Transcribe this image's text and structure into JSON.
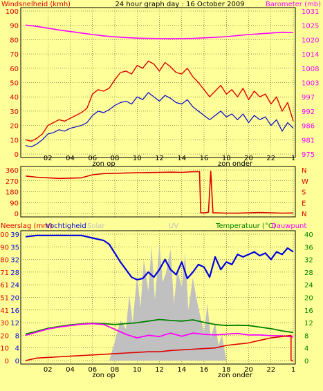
{
  "colors": {
    "background": "#ffff99",
    "wind": "#dd0000",
    "gust": "#0000cc",
    "baro": "#ff00ff",
    "rain": "#dd0000",
    "humidity": "#0000dd",
    "temperature": "#008000",
    "dewpoint": "#ff00ff",
    "solar": "#c0c0c0",
    "frame": "#000000"
  },
  "chart_data": [
    {
      "type": "line",
      "title": "24 hour graph day : 16 October 2009",
      "left_label": "Windsnelheid (kmh)",
      "right_label": "Barometer (mb)",
      "ylim": [
        0,
        100
      ],
      "y_ticks": [
        "100",
        "90",
        "80",
        "70",
        "60",
        "50",
        "40",
        "30",
        "20",
        "10",
        "0"
      ],
      "y2_lim": [
        975,
        1031
      ],
      "y2_ticks": [
        "1031",
        "1025",
        "1020",
        "1014",
        "1008",
        "1003",
        "997",
        "992",
        "986",
        "981",
        "975"
      ],
      "x_ticks": [
        "02",
        "04",
        "06",
        "08",
        "10",
        "12",
        "14",
        "16",
        "18",
        "20",
        "22",
        "1"
      ],
      "sunrise_label": "zon op",
      "sunset_label": "zon onder",
      "series": [
        {
          "key": "wind",
          "x": [
            0,
            0.5,
            1,
            1.5,
            2,
            2.5,
            3,
            3.5,
            4,
            4.5,
            5,
            5.5,
            6,
            6.5,
            7,
            7.5,
            8,
            8.5,
            9,
            9.5,
            10,
            10.5,
            11,
            11.5,
            12,
            12.5,
            13,
            13.5,
            14,
            14.5,
            15,
            15.5,
            16,
            16.5,
            17,
            17.5,
            18,
            18.5,
            19,
            19.5,
            20,
            20.5,
            21,
            21.5,
            22,
            22.5,
            23,
            23.5,
            24
          ],
          "values": [
            10,
            9,
            11,
            14,
            20,
            22,
            24,
            23,
            25,
            27,
            29,
            32,
            42,
            45,
            44,
            46,
            52,
            57,
            58,
            56,
            62,
            60,
            65,
            63,
            58,
            64,
            61,
            57,
            56,
            60,
            54,
            50,
            45,
            40,
            44,
            48,
            42,
            45,
            40,
            46,
            38,
            44,
            40,
            42,
            35,
            40,
            30,
            36,
            23
          ]
        },
        {
          "key": "gust",
          "x": [
            0,
            0.5,
            1,
            1.5,
            2,
            2.5,
            3,
            3.5,
            4,
            4.5,
            5,
            5.5,
            6,
            6.5,
            7,
            7.5,
            8,
            8.5,
            9,
            9.5,
            10,
            10.5,
            11,
            11.5,
            12,
            12.5,
            13,
            13.5,
            14,
            14.5,
            15,
            15.5,
            16,
            16.5,
            17,
            17.5,
            18,
            18.5,
            19,
            19.5,
            20,
            20.5,
            21,
            21.5,
            22,
            22.5,
            23,
            23.5,
            24
          ],
          "values": [
            6,
            5,
            7,
            10,
            14,
            15,
            17,
            16,
            18,
            19,
            20,
            22,
            27,
            30,
            29,
            31,
            34,
            36,
            37,
            35,
            40,
            38,
            43,
            40,
            37,
            41,
            39,
            36,
            35,
            38,
            33,
            30,
            27,
            24,
            27,
            30,
            26,
            28,
            24,
            28,
            22,
            27,
            24,
            26,
            20,
            24,
            16,
            22,
            18
          ]
        },
        {
          "key": "baro",
          "axis": "right",
          "x": [
            0,
            1,
            2,
            3,
            4,
            5,
            6,
            7,
            8,
            9,
            10,
            11,
            12,
            13,
            14,
            15,
            16,
            17,
            18,
            19,
            20,
            21,
            22,
            23,
            24
          ],
          "values": [
            1025.5,
            1025.0,
            1024.3,
            1023.6,
            1023.0,
            1022.4,
            1021.8,
            1021.3,
            1020.9,
            1020.6,
            1020.4,
            1020.3,
            1020.2,
            1020.2,
            1020.2,
            1020.3,
            1020.5,
            1020.7,
            1021.0,
            1021.4,
            1021.8,
            1022.1,
            1022.4,
            1022.7,
            1022.6
          ]
        }
      ]
    },
    {
      "type": "line",
      "y_ticks": [
        "360",
        "270",
        "180",
        "90",
        "0"
      ],
      "ylim": [
        0,
        360
      ],
      "compass_labels": [
        "N",
        "W",
        "S",
        "E",
        "N"
      ],
      "series": [
        {
          "key": "direction",
          "x": [
            0,
            1,
            2,
            3,
            4,
            5,
            6,
            7,
            8,
            9,
            10,
            11,
            12,
            13,
            14,
            15,
            15.6,
            15.7,
            16,
            16.4,
            16.6,
            16.8,
            17,
            18,
            19,
            20,
            21,
            22,
            23,
            24
          ],
          "values": [
            310,
            300,
            295,
            290,
            292,
            295,
            320,
            330,
            332,
            335,
            337,
            338,
            340,
            342,
            340,
            345,
            345,
            5,
            5,
            10,
            350,
            5,
            5,
            3,
            2,
            5,
            8,
            5,
            3,
            4
          ]
        }
      ]
    },
    {
      "type": "line",
      "left_label": "Neerslag (mm)",
      "humidity_label": "Vochtigheid",
      "solar_label": "Solar",
      "uv_label": "UV",
      "right_label": "Temperatuur (°C)",
      "dewpoint_label": "Dauwpunt",
      "ylim": [
        0,
        100
      ],
      "y_ticks": [
        "100",
        "90",
        "80",
        "71",
        "61",
        "51",
        "41",
        "30",
        "20",
        "10",
        "0"
      ],
      "y_left_inner_ticks": [
        "39",
        "35",
        "32",
        "28",
        "24",
        "20",
        "16",
        "12",
        "8",
        "4",
        "0"
      ],
      "y2_lim": [
        0,
        40
      ],
      "y2_ticks": [
        "40",
        "36",
        "32",
        "28",
        "24",
        "20",
        "16",
        "12",
        "8",
        "4",
        "0"
      ],
      "x_ticks": [
        "02",
        "04",
        "06",
        "08",
        "10",
        "12",
        "14",
        "16",
        "18",
        "20",
        "22",
        "1"
      ],
      "sunrise_label": "zon op",
      "sunset_label": "zon onder",
      "series": [
        {
          "key": "humidity",
          "x": [
            0,
            1,
            2,
            3,
            4,
            5,
            6,
            6.5,
            7,
            7.5,
            8,
            8.5,
            9,
            9.5,
            10,
            10.5,
            11,
            11.5,
            12,
            12.5,
            13,
            13.5,
            14,
            14.5,
            15,
            15.5,
            16,
            16.5,
            17,
            17.5,
            18,
            18.5,
            19,
            19.5,
            20,
            20.5,
            21,
            21.5,
            22,
            22.5,
            23,
            23.5,
            24
          ],
          "values": [
            98,
            99,
            99,
            99,
            99,
            99,
            97,
            96,
            95,
            92,
            85,
            78,
            72,
            66,
            64,
            65,
            70,
            66,
            72,
            80,
            72,
            68,
            78,
            65,
            70,
            76,
            74,
            66,
            82,
            72,
            78,
            76,
            84,
            82,
            84,
            86,
            83,
            85,
            80,
            86,
            84,
            89,
            86
          ]
        },
        {
          "key": "temperature",
          "axis": "right",
          "x": [
            0,
            1,
            2,
            3,
            4,
            5,
            6,
            7,
            8,
            9,
            10,
            11,
            12,
            13,
            14,
            15,
            16,
            17,
            18,
            19,
            20,
            21,
            22,
            23,
            24
          ],
          "values": [
            8.4,
            9.3,
            10.2,
            10.8,
            11.3,
            11.6,
            11.8,
            11.7,
            11.4,
            11.7,
            12.0,
            12.5,
            13.0,
            12.7,
            12.5,
            12.9,
            12.1,
            11.4,
            11.1,
            11.2,
            11.1,
            10.6,
            10.1,
            9.4,
            8.9
          ]
        },
        {
          "key": "dewpoint",
          "axis": "right",
          "x": [
            0,
            1,
            2,
            3,
            4,
            5,
            6,
            7,
            8,
            9,
            10,
            11,
            12,
            13,
            14,
            15,
            16,
            17,
            18,
            19,
            20,
            21,
            22,
            23,
            24
          ],
          "values": [
            8.0,
            9.0,
            10.0,
            10.6,
            11.1,
            11.5,
            11.7,
            11.4,
            9.9,
            8.3,
            7.2,
            8.0,
            7.6,
            8.7,
            7.7,
            8.7,
            8.3,
            8.1,
            8.4,
            8.6,
            8.1,
            8.1,
            7.9,
            7.8,
            7.5
          ]
        },
        {
          "key": "rain",
          "x": [
            0,
            1,
            2,
            3,
            4,
            5,
            6,
            7,
            8,
            9,
            10,
            11,
            12,
            13,
            14,
            15,
            16,
            17,
            18,
            19,
            20,
            21,
            22,
            23,
            23.8,
            23.8,
            24
          ],
          "values": [
            0,
            2,
            2.5,
            3,
            3.5,
            4,
            4.5,
            5,
            5.5,
            6,
            6.5,
            7,
            7,
            8,
            8.5,
            9,
            9.5,
            10,
            12,
            13,
            14,
            16,
            18,
            19,
            20,
            0,
            0
          ]
        },
        {
          "key": "solar",
          "x": [
            0,
            7.5,
            8,
            8.5,
            9,
            9.3,
            9.6,
            10,
            10.3,
            10.6,
            11,
            11.3,
            11.6,
            12,
            12.3,
            12.6,
            13,
            13.3,
            13.6,
            14,
            14.3,
            14.6,
            15,
            15.3,
            15.6,
            16,
            16.3,
            16.6,
            17,
            17.3,
            17.6,
            18,
            24
          ],
          "values": [
            0,
            0,
            15,
            32,
            25,
            52,
            30,
            68,
            42,
            80,
            55,
            90,
            48,
            92,
            62,
            70,
            88,
            45,
            72,
            58,
            85,
            40,
            66,
            50,
            38,
            22,
            45,
            18,
            30,
            12,
            20,
            0,
            0
          ]
        }
      ]
    }
  ]
}
